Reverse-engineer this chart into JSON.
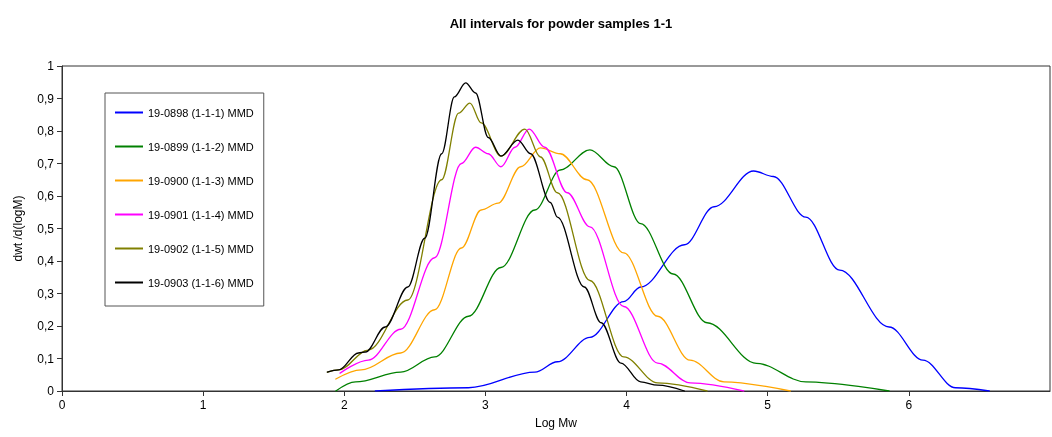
{
  "chart_data": {
    "type": "line",
    "title": "All intervals for powder samples 1-1",
    "xlabel": "Log Mw",
    "ylabel": "dwt /d(logM)",
    "xlim": [
      0,
      7
    ],
    "xticks": [
      0,
      1,
      2,
      3,
      4,
      5,
      6
    ],
    "ylim": [
      0,
      1
    ],
    "yticks": [
      0,
      {
        "value": 0.1,
        "label": "0,1"
      },
      {
        "value": 0.2,
        "label": "0,2"
      },
      {
        "value": 0.3,
        "label": "0,3"
      },
      {
        "value": 0.4,
        "label": "0,4"
      },
      {
        "value": 0.5,
        "label": "0,5"
      },
      {
        "value": 0.6,
        "label": "0,6"
      },
      {
        "value": 0.7,
        "label": "0,7"
      },
      {
        "value": 0.8,
        "label": "0,8"
      },
      {
        "value": 0.9,
        "label": "0,9"
      },
      1
    ],
    "grid": false,
    "legend": "top left",
    "series": [
      {
        "name": "19-0898 (1-1-1) MMD",
        "color": "#0000ff",
        "x": [
          2.22,
          2.88,
          3.35,
          3.51,
          3.74,
          3.98,
          4.1,
          4.41,
          4.62,
          4.9,
          5.04,
          5.27,
          5.51,
          5.86,
          6.1,
          6.33,
          6.57
        ],
        "values": [
          0,
          0.01,
          0.058,
          0.09,
          0.165,
          0.275,
          0.32,
          0.45,
          0.567,
          0.677,
          0.66,
          0.535,
          0.372,
          0.197,
          0.095,
          0.01,
          0
        ]
      },
      {
        "name": "19-0899 (1-1-2) MMD",
        "color": "#008000",
        "x": [
          1.94,
          2.08,
          2.4,
          2.64,
          2.88,
          3.11,
          3.35,
          3.53,
          3.74,
          3.91,
          4.1,
          4.33,
          4.57,
          4.92,
          5.27,
          5.86
        ],
        "values": [
          0,
          0.028,
          0.058,
          0.105,
          0.23,
          0.38,
          0.557,
          0.68,
          0.742,
          0.69,
          0.515,
          0.36,
          0.21,
          0.085,
          0.028,
          0
        ]
      },
      {
        "name": "19-0900 (1-1-3) MMD",
        "color": "#ffa500",
        "x": [
          1.94,
          2.12,
          2.4,
          2.64,
          2.83,
          2.97,
          3.09,
          3.25,
          3.39,
          3.53,
          3.72,
          3.98,
          4.22,
          4.45,
          4.69,
          5.16
        ],
        "values": [
          0.037,
          0.065,
          0.117,
          0.25,
          0.44,
          0.557,
          0.578,
          0.69,
          0.748,
          0.73,
          0.65,
          0.425,
          0.23,
          0.095,
          0.028,
          0
        ]
      },
      {
        "name": "19-0901 (1-1-4) MMD",
        "color": "#ff00ff",
        "x": [
          1.97,
          2.17,
          2.4,
          2.64,
          2.83,
          2.93,
          3.02,
          3.11,
          3.21,
          3.31,
          3.42,
          3.58,
          3.74,
          3.98,
          4.22,
          4.45,
          4.83
        ],
        "values": [
          0.055,
          0.095,
          0.19,
          0.41,
          0.7,
          0.75,
          0.73,
          0.69,
          0.75,
          0.806,
          0.75,
          0.61,
          0.505,
          0.26,
          0.086,
          0.025,
          0
        ]
      },
      {
        "name": "19-0902 (1-1-5) MMD",
        "color": "#808000",
        "x": [
          1.88,
          1.96,
          2.17,
          2.45,
          2.69,
          2.81,
          2.89,
          2.97,
          3.11,
          3.28,
          3.39,
          3.51,
          3.74,
          3.98,
          4.22,
          4.57
        ],
        "values": [
          0.058,
          0.065,
          0.126,
          0.28,
          0.65,
          0.855,
          0.886,
          0.825,
          0.723,
          0.806,
          0.72,
          0.61,
          0.34,
          0.105,
          0.025,
          0
        ]
      },
      {
        "name": "19-0903 (1-1-6) MMD",
        "color": "#000000",
        "x": [
          1.88,
          1.96,
          2.1,
          2.15,
          2.29,
          2.45,
          2.57,
          2.69,
          2.78,
          2.86,
          2.93,
          3.02,
          3.11,
          3.23,
          3.32,
          3.46,
          3.51,
          3.7,
          3.82,
          3.96,
          4.1,
          4.22,
          4.41
        ],
        "values": [
          0.058,
          0.065,
          0.117,
          0.12,
          0.197,
          0.32,
          0.47,
          0.73,
          0.905,
          0.948,
          0.917,
          0.78,
          0.723,
          0.772,
          0.73,
          0.58,
          0.535,
          0.32,
          0.21,
          0.086,
          0.028,
          0.018,
          0
        ]
      }
    ]
  }
}
